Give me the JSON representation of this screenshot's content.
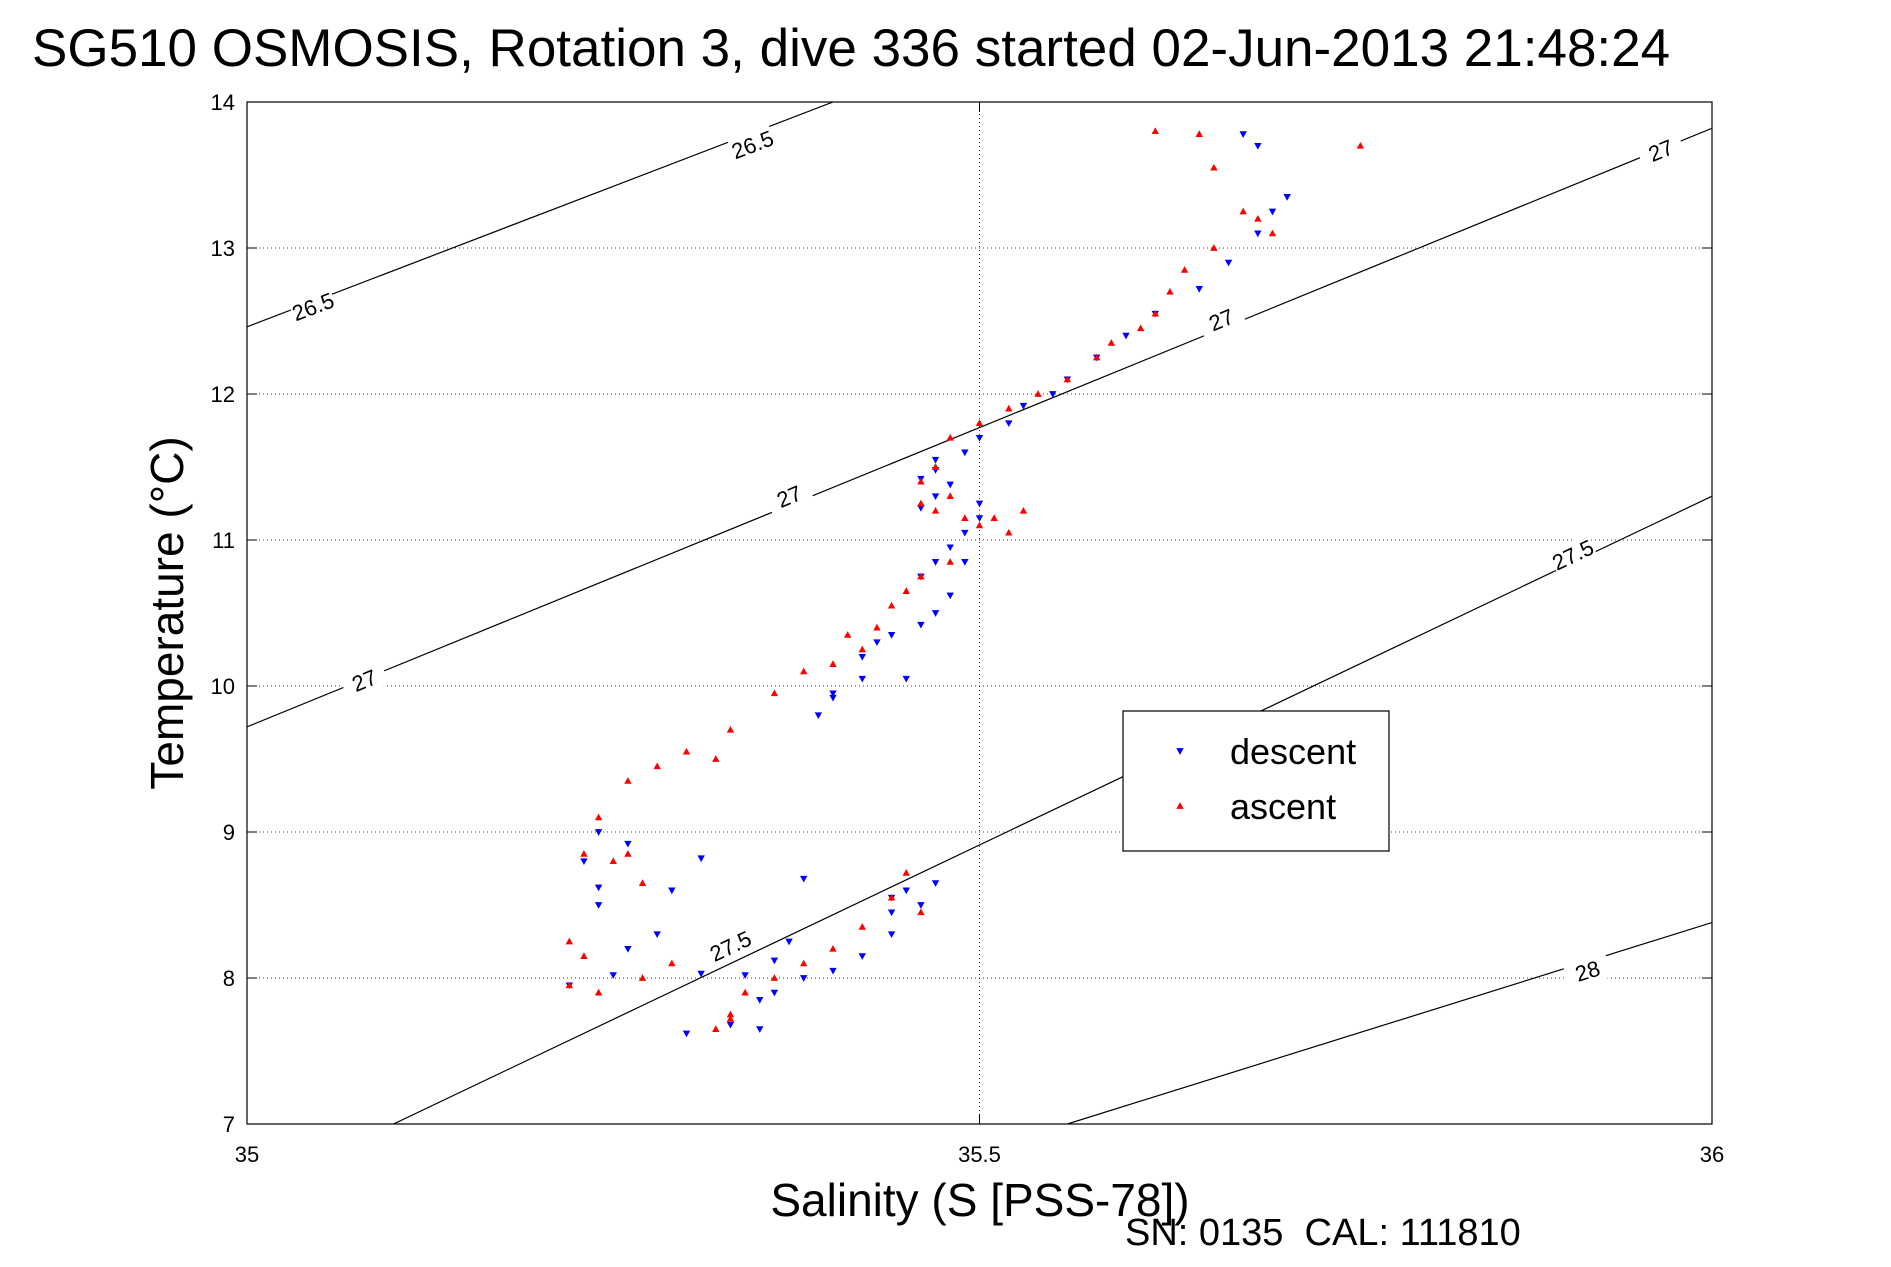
{
  "chart_data": {
    "type": "scatter",
    "title": "SG510 OSMOSIS, Rotation 3, dive 336 started 02-Jun-2013 21:48:24",
    "xlabel": "Salinity (S [PSS-78])",
    "ylabel": "Temperature (°C)",
    "footer": "SN: 0135  CAL: 111810",
    "xlim": [
      35,
      36
    ],
    "ylim": [
      7,
      14
    ],
    "xticks": [
      35,
      35.5,
      36
    ],
    "yticks": [
      7,
      8,
      9,
      10,
      11,
      12,
      13,
      14
    ],
    "xtick_labels": [
      "35",
      "35.5",
      "36"
    ],
    "ytick_labels": [
      "7",
      "8",
      "9",
      "10",
      "11",
      "12",
      "13",
      "14"
    ],
    "grid": true,
    "legend_position": "center-right",
    "colors": {
      "descent": "#0000ff",
      "ascent": "#ff0000",
      "contour": "#000000",
      "grid": "#000000"
    },
    "contours": [
      {
        "level": "26.5",
        "x": [
          35,
          35.4
        ],
        "y": [
          12.46,
          14.0
        ],
        "labels": [
          [
            35.045,
            12.6
          ],
          [
            35.345,
            13.71
          ]
        ]
      },
      {
        "level": "27",
        "x": [
          35,
          36
        ],
        "y": [
          9.72,
          13.82
        ],
        "labels": [
          [
            35.08,
            10.04
          ],
          [
            35.37,
            11.3
          ],
          [
            35.665,
            12.51
          ],
          [
            35.965,
            13.67
          ]
        ]
      },
      {
        "level": "27.5",
        "x": [
          35.1,
          36
        ],
        "y": [
          7.0,
          11.3
        ],
        "labels": [
          [
            35.33,
            8.22
          ],
          [
            35.905,
            10.9
          ]
        ]
      },
      {
        "level": "28",
        "x": [
          35.56,
          36
        ],
        "y": [
          7.0,
          8.38
        ],
        "labels": [
          [
            35.915,
            8.05
          ]
        ]
      }
    ],
    "series": [
      {
        "name": "descent",
        "marker": "triangle-down",
        "x": [
          35.68,
          35.69,
          35.71,
          35.7,
          35.69,
          35.67,
          35.65,
          35.62,
          35.6,
          35.58,
          35.56,
          35.55,
          35.53,
          35.52,
          35.5,
          35.49,
          35.47,
          35.47,
          35.46,
          35.48,
          35.47,
          35.46,
          35.5,
          35.5,
          35.49,
          35.48,
          35.47,
          35.46,
          35.48,
          35.49,
          35.47,
          35.46,
          35.44,
          35.43,
          35.45,
          35.42,
          35.42,
          35.4,
          35.39,
          35.4,
          35.47,
          35.45,
          35.44,
          35.44,
          35.38,
          35.37,
          35.36,
          35.34,
          35.31,
          35.26,
          35.28,
          35.29,
          35.31,
          35.24,
          35.26,
          35.24,
          35.23,
          35.24,
          35.22,
          35.25,
          35.46,
          35.44,
          35.42,
          35.4,
          35.38,
          35.35,
          35.36,
          35.35,
          35.33,
          35.3
        ],
        "y": [
          13.78,
          13.7,
          13.35,
          13.25,
          13.1,
          12.9,
          12.72,
          12.55,
          12.4,
          12.25,
          12.1,
          12.0,
          11.92,
          11.8,
          11.7,
          11.6,
          11.55,
          11.48,
          11.42,
          11.38,
          11.3,
          11.22,
          11.25,
          11.15,
          11.05,
          10.95,
          10.85,
          10.75,
          10.62,
          10.85,
          10.5,
          10.42,
          10.35,
          10.3,
          10.05,
          10.2,
          10.05,
          9.95,
          9.8,
          9.92,
          8.65,
          8.6,
          8.55,
          8.45,
          8.68,
          8.25,
          8.12,
          8.02,
          8.03,
          8.2,
          8.3,
          8.6,
          8.82,
          8.62,
          8.92,
          9.0,
          8.8,
          8.5,
          7.95,
          8.02,
          8.5,
          8.3,
          8.15,
          8.05,
          8.0,
          7.85,
          7.9,
          7.65,
          7.68,
          7.62
        ]
      },
      {
        "name": "ascent",
        "marker": "triangle-up",
        "x": [
          35.62,
          35.65,
          35.76,
          35.66,
          35.68,
          35.69,
          35.7,
          35.66,
          35.64,
          35.63,
          35.62,
          35.61,
          35.59,
          35.58,
          35.56,
          35.54,
          35.52,
          35.5,
          35.48,
          35.47,
          35.46,
          35.48,
          35.46,
          35.47,
          35.49,
          35.5,
          35.52,
          35.53,
          35.51,
          35.48,
          35.46,
          35.45,
          35.44,
          35.43,
          35.42,
          35.41,
          35.4,
          35.38,
          35.36,
          35.33,
          35.3,
          35.32,
          35.28,
          35.26,
          35.24,
          35.23,
          35.25,
          35.26,
          35.27,
          35.22,
          35.23,
          35.22,
          35.24,
          35.27,
          35.29,
          35.45,
          35.44,
          35.46,
          35.42,
          35.4,
          35.38,
          35.36,
          35.34,
          35.33,
          35.32,
          35.33
        ],
        "y": [
          13.8,
          13.78,
          13.7,
          13.55,
          13.25,
          13.2,
          13.1,
          13.0,
          12.85,
          12.7,
          12.55,
          12.45,
          12.35,
          12.25,
          12.1,
          12.0,
          11.9,
          11.8,
          11.7,
          11.5,
          11.4,
          11.3,
          11.25,
          11.2,
          11.15,
          11.1,
          11.05,
          11.2,
          11.15,
          10.85,
          10.75,
          10.65,
          10.55,
          10.4,
          10.25,
          10.35,
          10.15,
          10.1,
          9.95,
          9.7,
          9.55,
          9.5,
          9.45,
          9.35,
          9.1,
          8.85,
          8.8,
          8.85,
          8.65,
          8.25,
          8.15,
          7.95,
          7.9,
          8.0,
          8.1,
          8.72,
          8.55,
          8.45,
          8.35,
          8.2,
          8.1,
          8.0,
          7.9,
          7.75,
          7.65,
          7.72
        ]
      }
    ]
  }
}
